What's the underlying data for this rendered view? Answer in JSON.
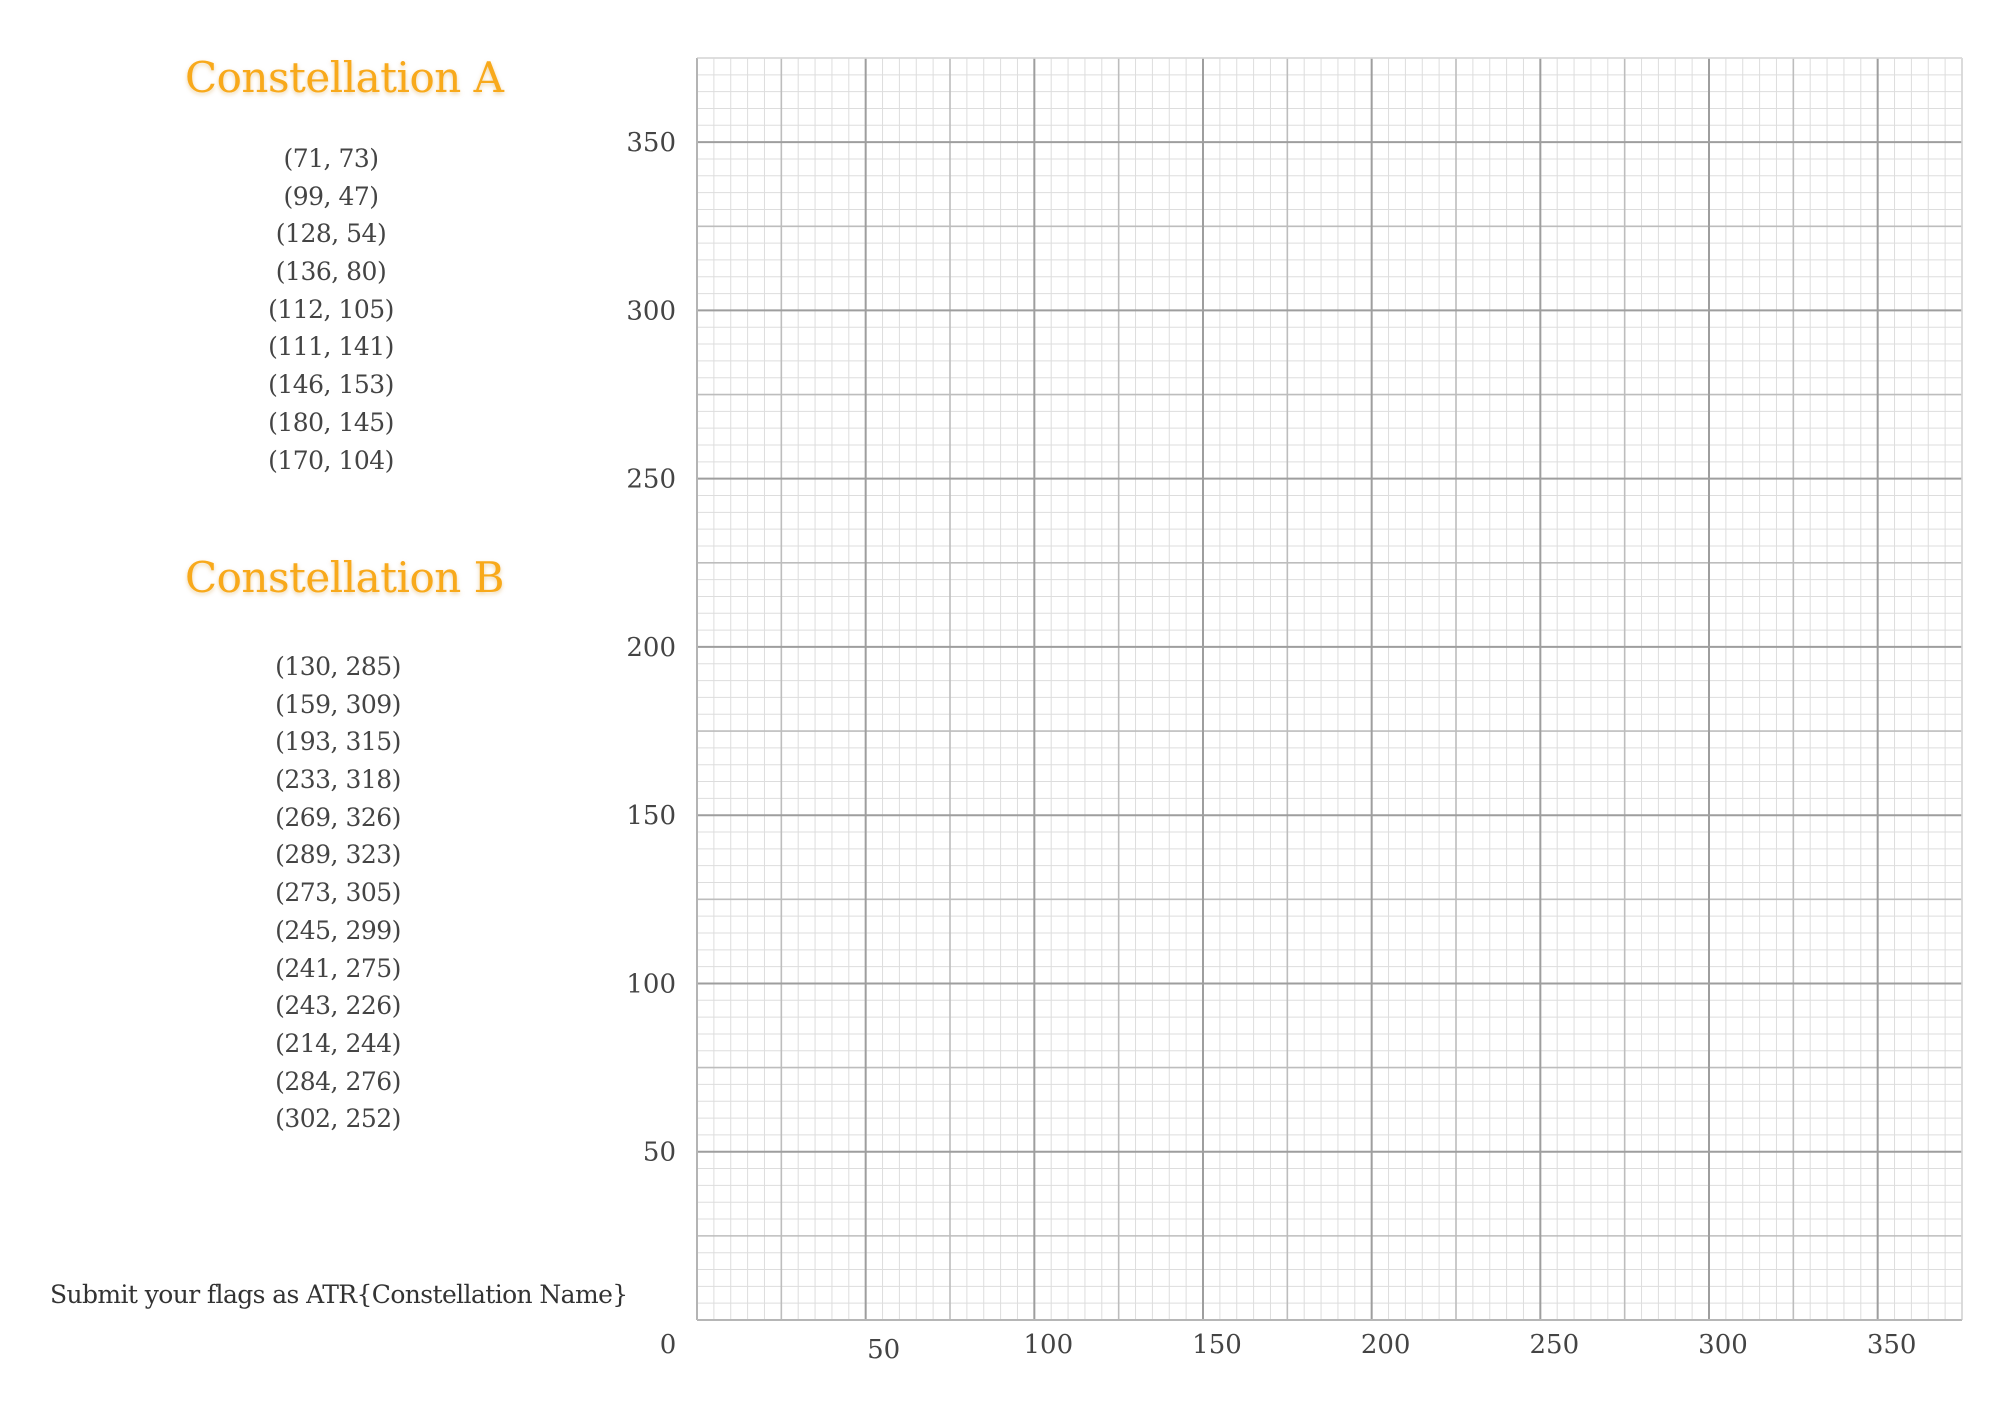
{
  "constellations": [
    {
      "title": "Constellation A",
      "points": [
        "(71, 73)",
        "(99, 47)",
        "(128, 54)",
        "(136, 80)",
        "(112, 105)",
        "(111, 141)",
        "(146, 153)",
        "(180, 145)",
        "(170, 104)"
      ]
    },
    {
      "title": "Constellation B",
      "points": [
        "(130, 285)",
        "(159, 309)",
        "(193, 315)",
        "(233, 318)",
        "(269, 326)",
        "(289, 323)",
        "(273, 305)",
        "(245, 299)",
        "(241, 275)",
        "(243, 226)",
        "(214, 244)",
        "(284, 276)",
        "(302, 252)"
      ]
    }
  ],
  "footer": {
    "flag_note": "Submit your flags as ATR{Constellation Name}"
  },
  "colors": {
    "title": "#f8a91b",
    "grid_minor": "#dddddd",
    "grid_mid": "#bdbdbd",
    "grid_major": "#9e9e9e"
  },
  "chart_data": {
    "type": "scatter",
    "title": "",
    "xlabel": "",
    "ylabel": "",
    "xlim": [
      0,
      375
    ],
    "ylim": [
      0,
      375
    ],
    "x_ticks": [
      50,
      100,
      150,
      200,
      250,
      300,
      350
    ],
    "y_ticks": [
      50,
      100,
      150,
      200,
      250,
      300,
      350
    ],
    "origin_label": "0",
    "grid": true,
    "minor_grid_step": 5,
    "mid_grid_step": 25,
    "major_grid_step": 50,
    "series": []
  }
}
